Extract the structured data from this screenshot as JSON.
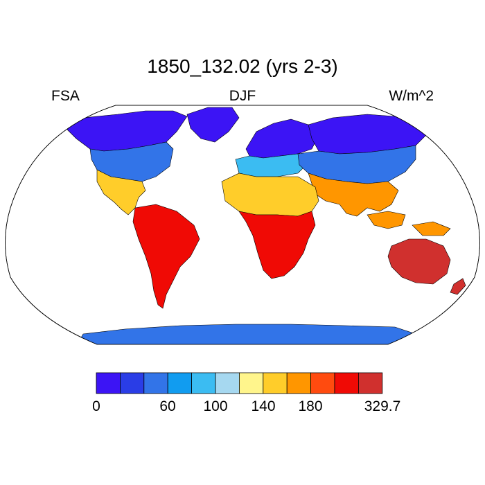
{
  "title": "1850_132.02 (yrs 2-3)",
  "left_label": "FSA",
  "center_label": "DJF",
  "right_label": "W/m^2",
  "colorbar": {
    "colors": [
      "#3c14f5",
      "#2a3de6",
      "#3274e8",
      "#119cf0",
      "#3bbcf2",
      "#a6d8f0",
      "#fff58c",
      "#ffcd2a",
      "#ff9600",
      "#ff4b0f",
      "#f00a05",
      "#d0302e"
    ],
    "tick_labels": [
      "0",
      "60",
      "100",
      "140",
      "180",
      "329.7"
    ]
  },
  "map": {
    "projection": "Robinson",
    "continent_colors": {
      "north_america_arctic": "#3c14f5",
      "north_america_mid": "#3274e8",
      "north_america_south": "#ffcd2a",
      "greenland": "#3c14f5",
      "south_america": "#f00a05",
      "europe_north": "#3c14f5",
      "europe_south": "#3bbcf2",
      "asia_north": "#3c14f5",
      "asia_mid": "#3274e8",
      "asia_south": "#ff9600",
      "north_africa": "#ffcd2a",
      "south_africa": "#f00a05",
      "australia": "#d0302e",
      "maritime": "#ff9600",
      "antarctica": "#3274e8"
    }
  }
}
